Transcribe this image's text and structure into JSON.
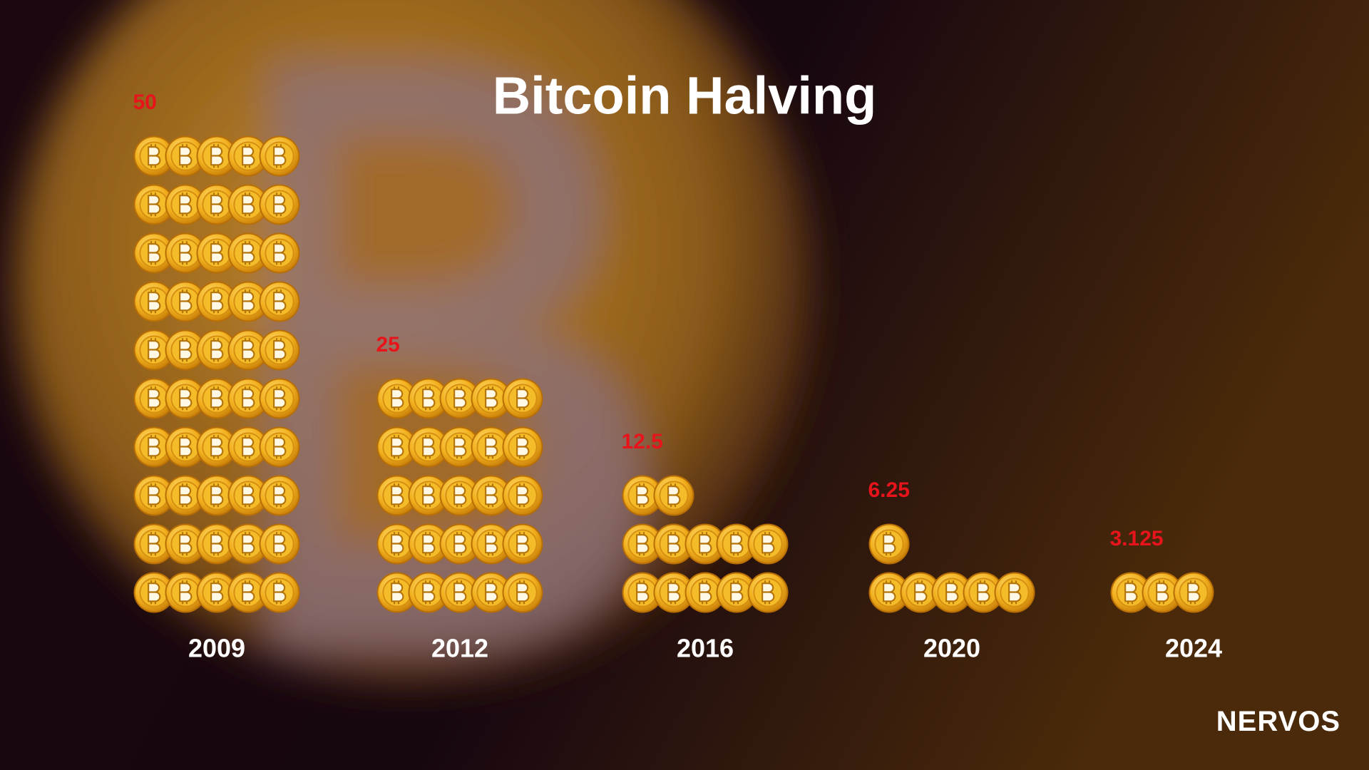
{
  "chart_data": {
    "type": "pictogram",
    "title": "Bitcoin Halving",
    "categories": [
      "2009",
      "2012",
      "2016",
      "2020",
      "2024"
    ],
    "values": [
      50,
      25,
      12.5,
      6.25,
      3.125
    ],
    "label_color": "#e8141b",
    "coin_color": "#f2b01e",
    "logo": "NERVOS"
  }
}
